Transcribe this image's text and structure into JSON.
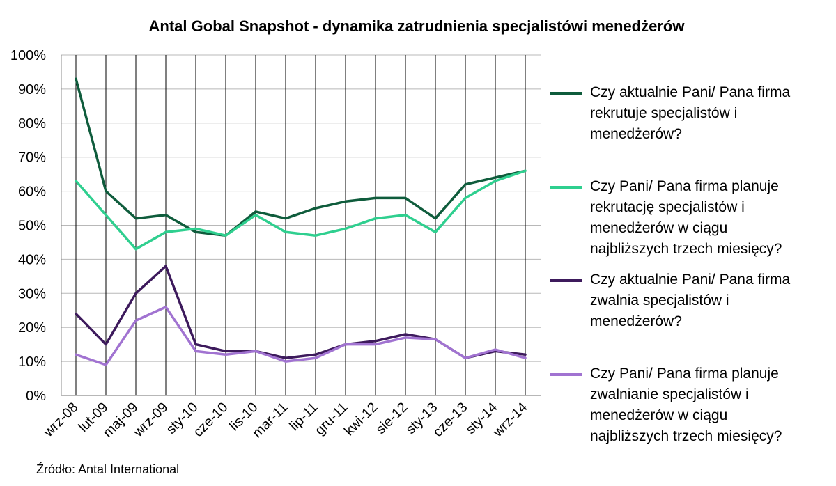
{
  "chart_data": {
    "type": "line",
    "title": "Antal Gobal Snapshot - dynamika zatrudnienia specjalistówi menedżerów",
    "xlabel": "",
    "ylabel": "",
    "ylim": [
      0,
      100
    ],
    "y_ticks": [
      "0%",
      "10%",
      "20%",
      "30%",
      "40%",
      "50%",
      "60%",
      "70%",
      "80%",
      "90%",
      "100%"
    ],
    "grid": "horizontal and vertical",
    "legend_position": "right",
    "categories": [
      "wrz-08",
      "lut-09",
      "maj-09",
      "wrz-09",
      "sty-10",
      "cze-10",
      "lis-10",
      "mar-11",
      "lip-11",
      "gru-11",
      "kwi-12",
      "sie-12",
      "sty-13",
      "cze-13",
      "sty-14",
      "wrz-14"
    ],
    "series": [
      {
        "name": "Czy aktualnie Pani/ Pana firma rekrutuje specjalistów i menedżerów?",
        "color": "#0f5c3c",
        "values": [
          93,
          60,
          52,
          53,
          48,
          47,
          54,
          52,
          55,
          57,
          58,
          58,
          52,
          62,
          64,
          66
        ]
      },
      {
        "name": "Czy Pani/ Pana firma planuje rekrutację specjalistów i menedżerów w ciągu najbliższych trzech miesięcy?",
        "color": "#2fcf8f",
        "values": [
          63,
          53,
          43,
          48,
          49,
          47,
          53,
          48,
          47,
          49,
          52,
          53,
          48,
          58,
          63,
          66
        ]
      },
      {
        "name": "Czy aktualnie Pani/ Pana firma zwalnia specjalistów i menedżerów?",
        "color": "#3d1a5c",
        "values": [
          24,
          15,
          30,
          38,
          15,
          13,
          13,
          11,
          12,
          15,
          16,
          18,
          16.5,
          11,
          13,
          12
        ]
      },
      {
        "name": "Czy Pani/ Pana firma planuje zwalnianie specjalistów i menedżerów w ciągu najbliższych trzech miesięcy?",
        "color": "#a173d1",
        "values": [
          12,
          9,
          22,
          26,
          13,
          12,
          13,
          10,
          11,
          15,
          15,
          17,
          16.5,
          11,
          13.5,
          11
        ]
      }
    ]
  },
  "legend": {
    "items": [
      {
        "lines": [
          "Czy aktualnie Pani/ Pana firma",
          "rekrutuje specjalistów i",
          "menedżerów?"
        ]
      },
      {
        "lines": [
          "Czy Pani/ Pana firma planuje",
          "rekrutację specjalistów i",
          "menedżerów w ciągu",
          "najbliższych trzech miesięcy?"
        ]
      },
      {
        "lines": [
          "Czy aktualnie Pani/ Pana firma",
          "zwalnia specjalistów i",
          "menedżerów?"
        ]
      },
      {
        "lines": [
          "Czy Pani/ Pana firma planuje",
          "zwalnianie specjalistów i",
          "menedżerów w ciągu",
          "najbliższych trzech miesięcy?"
        ]
      }
    ]
  },
  "source": "Źródło: Antal International"
}
